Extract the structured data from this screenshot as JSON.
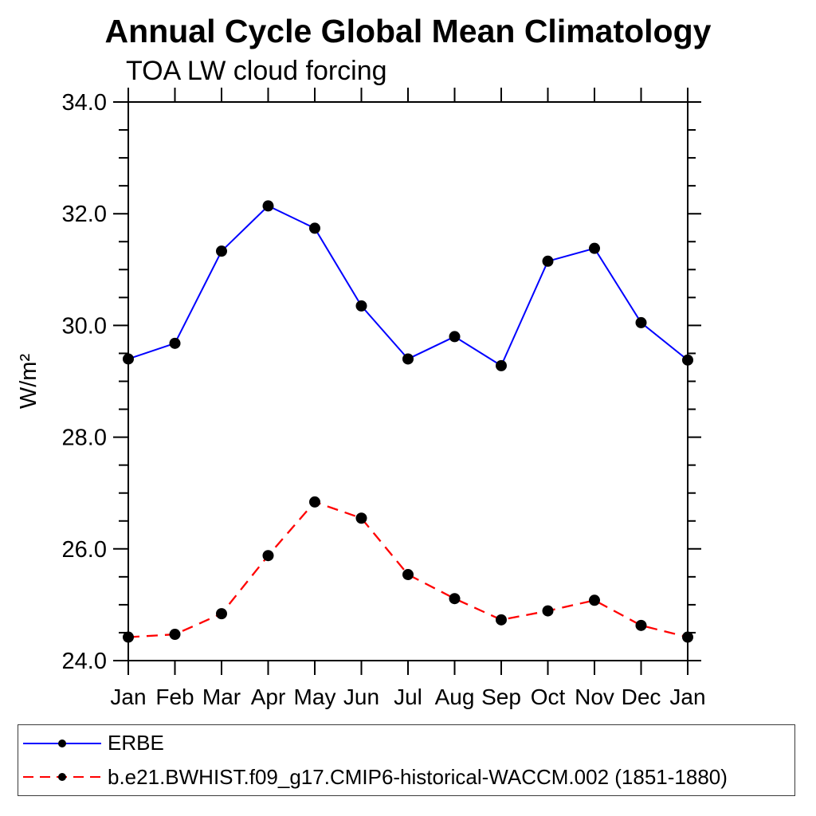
{
  "page": {
    "title": "Annual Cycle Global Mean Climatology",
    "subtitle": "TOA LW cloud forcing"
  },
  "chart_data": {
    "type": "line",
    "title": "Annual Cycle Global Mean Climatology",
    "subtitle": "TOA LW cloud forcing",
    "xlabel": "",
    "ylabel": "W/m²",
    "categories": [
      "Jan",
      "Feb",
      "Mar",
      "Apr",
      "May",
      "Jun",
      "Jul",
      "Aug",
      "Sep",
      "Oct",
      "Nov",
      "Dec",
      "Jan"
    ],
    "ylim": [
      24.0,
      34.0
    ],
    "y_major_ticks": [
      24.0,
      26.0,
      28.0,
      30.0,
      32.0,
      34.0
    ],
    "y_major_tick_labels": [
      "24.0",
      "26.0",
      "28.0",
      "30.0",
      "32.0",
      "34.0"
    ],
    "y_minor_step": 0.5,
    "grid": false,
    "legend_position": "bottom",
    "frame_color": "#000000",
    "series": [
      {
        "name": "ERBE",
        "color": "#0000ff",
        "line_style": "solid",
        "marker": "circle",
        "marker_color": "#000000",
        "values": [
          29.4,
          29.68,
          31.33,
          32.14,
          31.74,
          30.35,
          29.4,
          29.8,
          29.28,
          31.15,
          31.38,
          30.05,
          29.38
        ]
      },
      {
        "name": "b.e21.BWHIST.f09_g17.CMIP6-historical-WACCM.002 (1851-1880)",
        "color": "#ff0000",
        "line_style": "dashed",
        "marker": "circle",
        "marker_color": "#000000",
        "values": [
          24.42,
          24.47,
          24.84,
          25.88,
          26.84,
          26.55,
          25.54,
          25.11,
          24.73,
          24.89,
          25.08,
          24.63,
          24.42
        ]
      }
    ]
  }
}
